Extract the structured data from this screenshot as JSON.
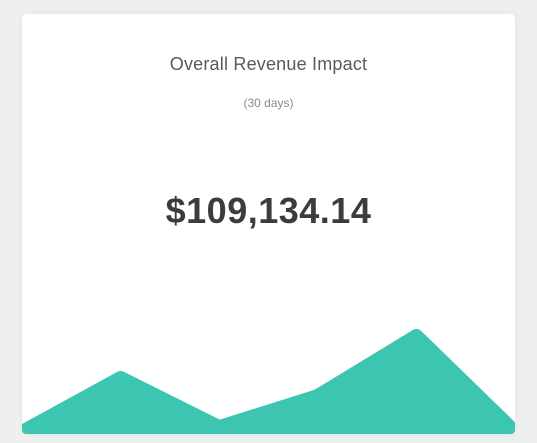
{
  "card": {
    "title": "Overall Revenue Impact",
    "subtitle": "(30 days)",
    "value": "$109,134.14"
  },
  "colors": {
    "accent": "#3cc5b0",
    "background": "#eef0ef",
    "card": "#ffffff"
  },
  "chart_data": {
    "type": "area",
    "x": [
      0,
      1,
      2,
      3,
      4,
      5
    ],
    "values": [
      0.0,
      0.45,
      0.04,
      0.3,
      0.8,
      0.0
    ],
    "title": "",
    "xlabel": "",
    "ylabel": "",
    "ylim": [
      0,
      1
    ],
    "grid": false
  }
}
